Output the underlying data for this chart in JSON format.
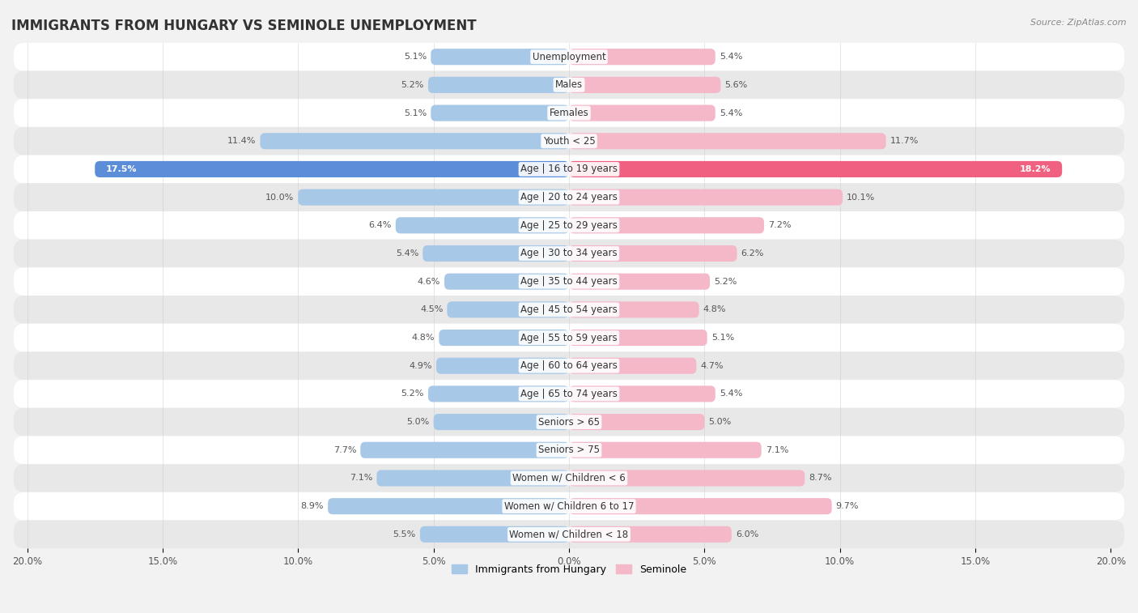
{
  "title": "IMMIGRANTS FROM HUNGARY VS SEMINOLE UNEMPLOYMENT",
  "source": "Source: ZipAtlas.com",
  "categories": [
    "Unemployment",
    "Males",
    "Females",
    "Youth < 25",
    "Age | 16 to 19 years",
    "Age | 20 to 24 years",
    "Age | 25 to 29 years",
    "Age | 30 to 34 years",
    "Age | 35 to 44 years",
    "Age | 45 to 54 years",
    "Age | 55 to 59 years",
    "Age | 60 to 64 years",
    "Age | 65 to 74 years",
    "Seniors > 65",
    "Seniors > 75",
    "Women w/ Children < 6",
    "Women w/ Children 6 to 17",
    "Women w/ Children < 18"
  ],
  "left_values": [
    5.1,
    5.2,
    5.1,
    11.4,
    17.5,
    10.0,
    6.4,
    5.4,
    4.6,
    4.5,
    4.8,
    4.9,
    5.2,
    5.0,
    7.7,
    7.1,
    8.9,
    5.5
  ],
  "right_values": [
    5.4,
    5.6,
    5.4,
    11.7,
    18.2,
    10.1,
    7.2,
    6.2,
    5.2,
    4.8,
    5.1,
    4.7,
    5.4,
    5.0,
    7.1,
    8.7,
    9.7,
    6.0
  ],
  "left_color": "#a8c8e8",
  "right_color": "#f4b8c8",
  "left_highlight_color": "#5b8dd9",
  "right_highlight_color": "#f06080",
  "highlight_index": 4,
  "bar_height": 0.58,
  "xlim": 20.0,
  "background_color": "#f2f2f2",
  "row_even_color": "#ffffff",
  "row_odd_color": "#e8e8e8",
  "legend_left": "Immigrants from Hungary",
  "legend_right": "Seminole",
  "title_fontsize": 12,
  "label_fontsize": 8.5,
  "value_fontsize": 8.0
}
